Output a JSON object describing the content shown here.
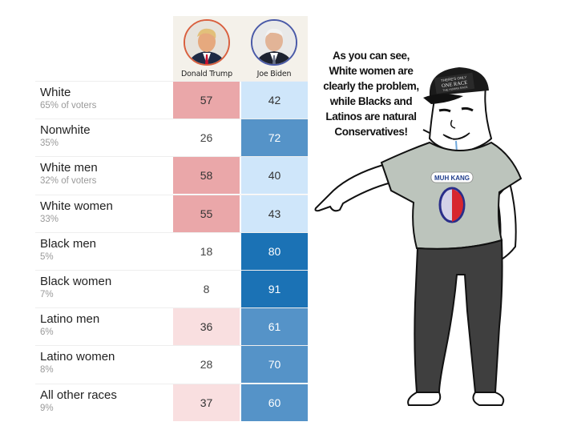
{
  "candidates": [
    {
      "name": "Donald Trump",
      "ring_color": "#d9603f",
      "icon": "trump-portrait"
    },
    {
      "name": "Joe Biden",
      "ring_color": "#4a5aa8",
      "icon": "biden-portrait"
    }
  ],
  "rows": [
    {
      "group": "White",
      "share": "65% of voters",
      "trump": "57",
      "biden": "42",
      "trump_color": "#eaa7a9",
      "biden_color": "#cfe6fa",
      "trump_text": "#333333",
      "biden_text": "#333333"
    },
    {
      "group": "Nonwhite",
      "share": "35%",
      "trump": "26",
      "biden": "72",
      "trump_color": "#ffffff",
      "biden_color": "#5593c8",
      "trump_text": "#444444",
      "biden_text": "#ffffff"
    },
    {
      "group": "White men",
      "share": "32% of voters",
      "trump": "58",
      "biden": "40",
      "trump_color": "#eaa7a9",
      "biden_color": "#cfe6fa",
      "trump_text": "#333333",
      "biden_text": "#333333"
    },
    {
      "group": "White women",
      "share": "33%",
      "trump": "55",
      "biden": "43",
      "trump_color": "#eaa7a9",
      "biden_color": "#cfe6fa",
      "trump_text": "#333333",
      "biden_text": "#333333"
    },
    {
      "group": "Black men",
      "share": "5%",
      "trump": "18",
      "biden": "80",
      "trump_color": "#ffffff",
      "biden_color": "#1b72b5",
      "trump_text": "#444444",
      "biden_text": "#ffffff"
    },
    {
      "group": "Black women",
      "share": "7%",
      "trump": "8",
      "biden": "91",
      "trump_color": "#ffffff",
      "biden_color": "#1b72b5",
      "trump_text": "#444444",
      "biden_text": "#ffffff"
    },
    {
      "group": "Latino men",
      "share": "6%",
      "trump": "36",
      "biden": "61",
      "trump_color": "#f9dfe0",
      "biden_color": "#5593c8",
      "trump_text": "#333333",
      "biden_text": "#ffffff"
    },
    {
      "group": "Latino women",
      "share": "8%",
      "trump": "28",
      "biden": "70",
      "trump_color": "#ffffff",
      "biden_color": "#5593c8",
      "trump_text": "#444444",
      "biden_text": "#ffffff"
    },
    {
      "group": "All other races",
      "share": "9%",
      "trump": "37",
      "biden": "60",
      "trump_color": "#f9dfe0",
      "biden_color": "#5593c8",
      "trump_text": "#333333",
      "biden_text": "#ffffff"
    }
  ],
  "meme": {
    "quote_lines": [
      "As you can see,",
      "White women are",
      "clearly the problem,",
      "while Blacks and",
      "Latinos are natural",
      "Conservatives!"
    ],
    "hat_text": [
      "THERE'S ONLY",
      "ONE RACE",
      "THE HUMAN RACE"
    ],
    "shirt_text": "MUH KANG"
  }
}
